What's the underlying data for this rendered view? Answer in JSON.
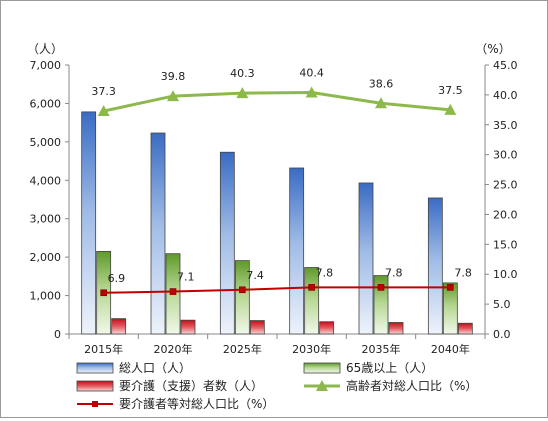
{
  "chart_data": {
    "type": "bar",
    "categories": [
      "2015年",
      "2020年",
      "2025年",
      "2030年",
      "2035年",
      "2040年"
    ],
    "left_axis": {
      "unit": "（人）",
      "min": 0,
      "max": 7000,
      "step": 1000,
      "ticks": [
        "0",
        "1,000",
        "2,000",
        "3,000",
        "4,000",
        "5,000",
        "6,000",
        "7,000"
      ]
    },
    "right_axis": {
      "unit": "（%）",
      "min": 0,
      "max": 45,
      "step": 5,
      "ticks": [
        "0.0",
        "5.0",
        "10.0",
        "15.0",
        "20.0",
        "25.0",
        "30.0",
        "35.0",
        "40.0",
        "45.0"
      ]
    },
    "series": [
      {
        "name": "総人口（人）",
        "kind": "bar",
        "axis": "left",
        "color": "#4f81bd",
        "values": [
          5780,
          5230,
          4730,
          4320,
          3930,
          3540
        ]
      },
      {
        "name": "65歳以上（人）",
        "kind": "bar",
        "axis": "left",
        "color": "#76a83c",
        "values": [
          2150,
          2090,
          1910,
          1730,
          1520,
          1330
        ]
      },
      {
        "name": "要介護（支援）者数（人）",
        "kind": "bar",
        "axis": "left",
        "color": "#c0101a",
        "values": [
          400,
          360,
          350,
          320,
          300,
          280
        ]
      },
      {
        "name": "高齢者対総人口比（%）",
        "kind": "line",
        "axis": "right",
        "color": "#8db94c",
        "values": [
          37.3,
          39.8,
          40.3,
          40.4,
          38.6,
          37.5
        ],
        "labels": [
          "37.3",
          "39.8",
          "40.3",
          "40.4",
          "38.6",
          "37.5"
        ]
      },
      {
        "name": "要介護者等対総人口比（%）",
        "kind": "line",
        "axis": "right",
        "color": "#c00000",
        "values": [
          6.9,
          7.1,
          7.4,
          7.8,
          7.8,
          7.8
        ],
        "labels": [
          "6.9",
          "7.1",
          "7.4",
          "7.8",
          "7.8",
          "7.8"
        ]
      }
    ],
    "legend_position": "bottom",
    "grid": false
  }
}
